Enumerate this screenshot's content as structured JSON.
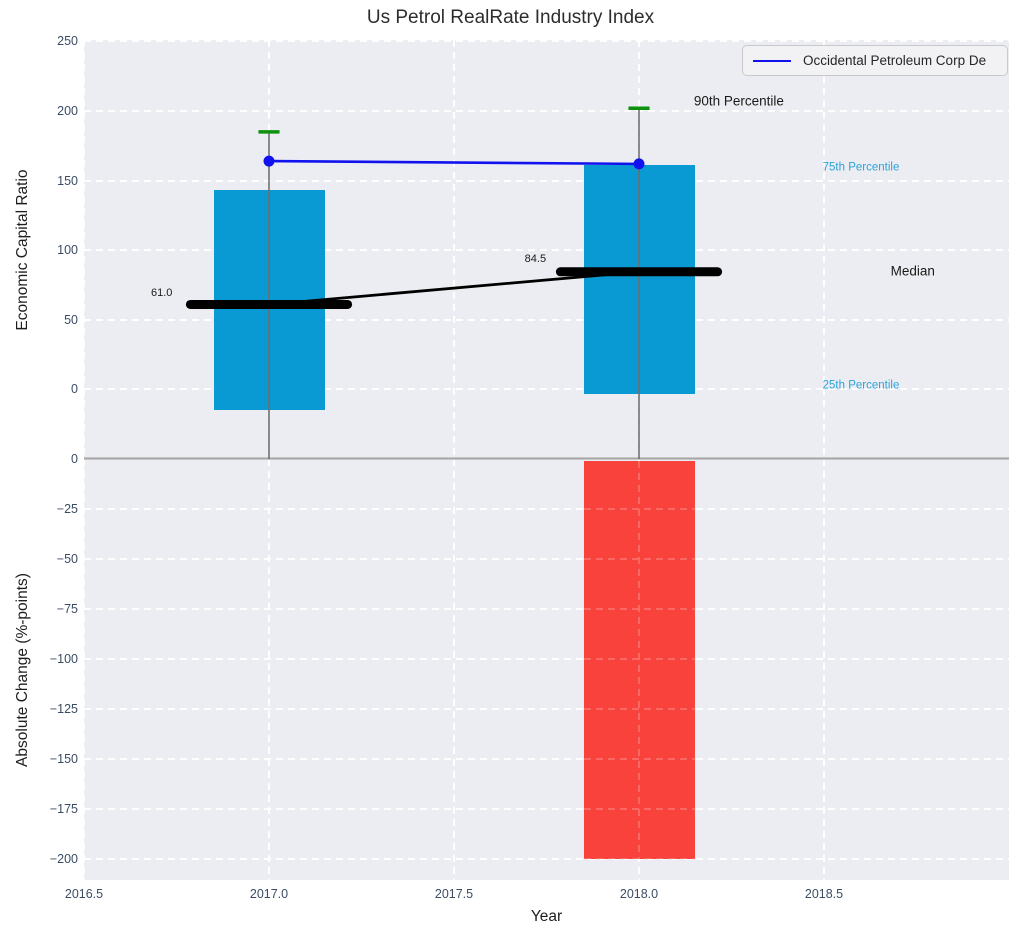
{
  "title": "Us Petrol RealRate Industry Index",
  "legend": {
    "label": "Occidental Petroleum Corp De"
  },
  "colors": {
    "plot_bg": "#ecedf2",
    "grid": "#ffffff",
    "box_fill": "#0a9ad3",
    "bar_fill": "#f9423b",
    "whisker_line": "#6e6e6e",
    "whisker_cap": "#0e910e",
    "company_line": "#1212ee",
    "median_line": "#000000",
    "tick_text": "#3c4c63",
    "annotation_blue": "#2aa3d9",
    "annotation_dark": "#1a1a1a"
  },
  "chart_data": [
    {
      "type": "box",
      "title": "Us Petrol RealRate Industry Index",
      "ylabel": "Economic Capital Ratio",
      "xlabel": "Year",
      "xlim": [
        2016.5,
        2019.0
      ],
      "ylim": [
        -50,
        251
      ],
      "grid": true,
      "legend_position": "upper right",
      "x_ticks": [
        {
          "v": 2016.5,
          "label": "2016.5"
        },
        {
          "v": 2017.0,
          "label": "2017.0"
        },
        {
          "v": 2017.5,
          "label": "2017.5"
        },
        {
          "v": 2018.0,
          "label": "2018.0"
        },
        {
          "v": 2018.5,
          "label": "2018.5"
        }
      ],
      "y_ticks": [
        {
          "v": 250,
          "label": "250"
        },
        {
          "v": 200,
          "label": "200"
        },
        {
          "v": 150,
          "label": "150"
        },
        {
          "v": 100,
          "label": "100"
        },
        {
          "v": 50,
          "label": "50"
        },
        {
          "v": 0,
          "label": "0"
        }
      ],
      "box_width_years": 0.3,
      "median_segment_years": 0.425,
      "cap_width_years": 0.057,
      "boxes": [
        {
          "x": 2017,
          "p25": -15,
          "median": 61.0,
          "p75": 143,
          "p90": 185
        },
        {
          "x": 2018,
          "p25": -3,
          "median": 84.5,
          "p75": 161.5,
          "p90": 202
        }
      ],
      "series": [
        {
          "name": "Occidental Petroleum Corp De",
          "x": [
            2017,
            2018
          ],
          "y": [
            164,
            162
          ]
        }
      ],
      "annotations": [
        {
          "text": "90th Percentile",
          "x": 2018.27,
          "y": 206.5,
          "size": 13.5,
          "color_key": "annotation_dark"
        },
        {
          "text": "75th Percentile",
          "x": 2018.6,
          "y": 159,
          "size": 11.5,
          "color_key": "annotation_blue"
        },
        {
          "text": "Median",
          "x": 2018.74,
          "y": 84.5,
          "size": 13.5,
          "color_key": "annotation_dark"
        },
        {
          "text": "25th Percentile",
          "x": 2018.6,
          "y": 2.4,
          "size": 11.5,
          "color_key": "annotation_blue"
        },
        {
          "text": "61.0",
          "x": 2016.71,
          "y": 69,
          "size": 11,
          "color_key": "annotation_dark"
        },
        {
          "text": "84.5",
          "x": 2017.72,
          "y": 94,
          "size": 11,
          "color_key": "annotation_dark"
        }
      ]
    },
    {
      "type": "bar",
      "ylabel": "Absolute Change (%-points)",
      "xlim": [
        2016.5,
        2019.0
      ],
      "ylim": [
        -210.5,
        0
      ],
      "grid": true,
      "y_ticks": [
        {
          "v": 0,
          "label": "0"
        },
        {
          "v": -25,
          "label": "−25"
        },
        {
          "v": -50,
          "label": "−50"
        },
        {
          "v": -75,
          "label": "−75"
        },
        {
          "v": -100,
          "label": "−100"
        },
        {
          "v": -125,
          "label": "−125"
        },
        {
          "v": -150,
          "label": "−150"
        },
        {
          "v": -175,
          "label": "−175"
        },
        {
          "v": -200,
          "label": "−200"
        }
      ],
      "bar_width_years": 0.3,
      "bars": [
        {
          "x": 2018,
          "value": -200
        }
      ]
    }
  ]
}
